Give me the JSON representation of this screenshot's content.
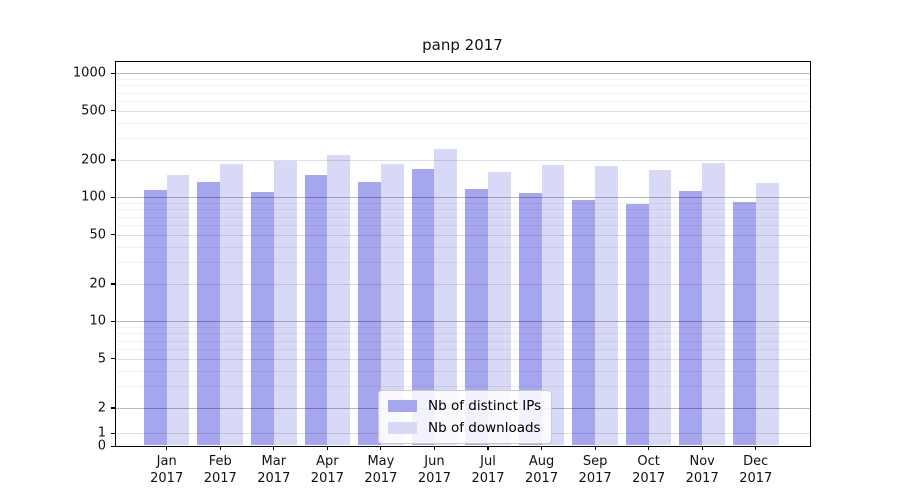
{
  "title": "panp 2017",
  "chart_data": {
    "type": "bar",
    "title": "panp 2017",
    "yscale": "symlog",
    "grid": true,
    "legend_position": "lower-center",
    "ylim": [
      0,
      1000
    ],
    "yticks": [
      0,
      1,
      2,
      5,
      10,
      20,
      50,
      100,
      200,
      500,
      1000
    ],
    "categories": [
      "Jan 2017",
      "Feb 2017",
      "Mar 2017",
      "Apr 2017",
      "May 2017",
      "Jun 2017",
      "Jul 2017",
      "Aug 2017",
      "Sep 2017",
      "Oct 2017",
      "Nov 2017",
      "Dec 2017"
    ],
    "series": [
      {
        "name": "Nb of distinct IPs",
        "color": "#a6a6ef",
        "values": [
          115,
          133,
          111,
          151,
          133,
          168,
          117,
          109,
          95,
          89,
          113,
          92
        ]
      },
      {
        "name": "Nb of downloads",
        "color": "#d8d8f7",
        "values": [
          150,
          184,
          198,
          221,
          186,
          244,
          160,
          182,
          179,
          167,
          190,
          131
        ]
      }
    ]
  },
  "colors": {
    "ips_bar": "#a6a6ef",
    "downloads_bar": "#d8d8f7",
    "grid_major_dark": "#b8b8b8",
    "grid_major": "#e0e0e0",
    "grid_minor": "#f0f0f0",
    "spine": "#000000"
  }
}
